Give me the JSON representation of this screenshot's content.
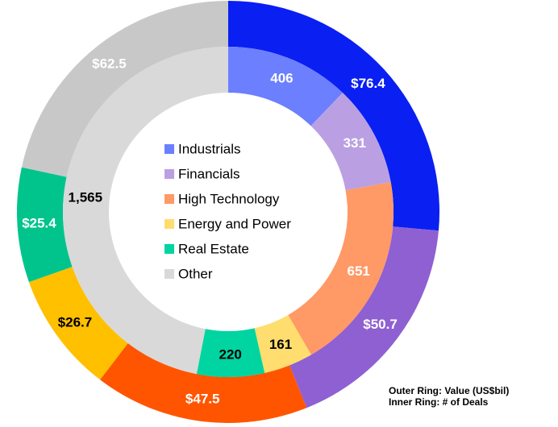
{
  "chart_data": {
    "type": "donut",
    "categories": [
      "Industrials",
      "Financials",
      "High Technology",
      "Energy and Power",
      "Real Estate",
      "Other"
    ],
    "series": [
      {
        "name": "Outer Ring: Value (US$bil)",
        "values": [
          76.4,
          50.7,
          47.5,
          26.7,
          25.4,
          62.5
        ],
        "value_labels": [
          "$76.4",
          "$50.7",
          "$47.5",
          "$26.7",
          "$25.4",
          "$62.5"
        ],
        "colors": [
          "#0a1ff2",
          "#8f60d2",
          "#ff5500",
          "#ffc000",
          "#00c48c",
          "#c8c8c8"
        ],
        "label_colors": [
          "#ffffff",
          "#ffffff",
          "#ffffff",
          "#000000",
          "#ffffff",
          "#ffffff"
        ]
      },
      {
        "name": "Inner Ring: # of Deals",
        "values": [
          406,
          331,
          651,
          161,
          220,
          1565
        ],
        "value_labels": [
          "406",
          "331",
          "651",
          "161",
          "220",
          "1,565"
        ],
        "colors": [
          "#6b7fff",
          "#baa0e2",
          "#ff9966",
          "#ffdd6e",
          "#00d4a0",
          "#d9d9d9"
        ],
        "label_colors": [
          "#ffffff",
          "#ffffff",
          "#ffffff",
          "#000000",
          "#000000",
          "#000000"
        ]
      }
    ]
  }
}
